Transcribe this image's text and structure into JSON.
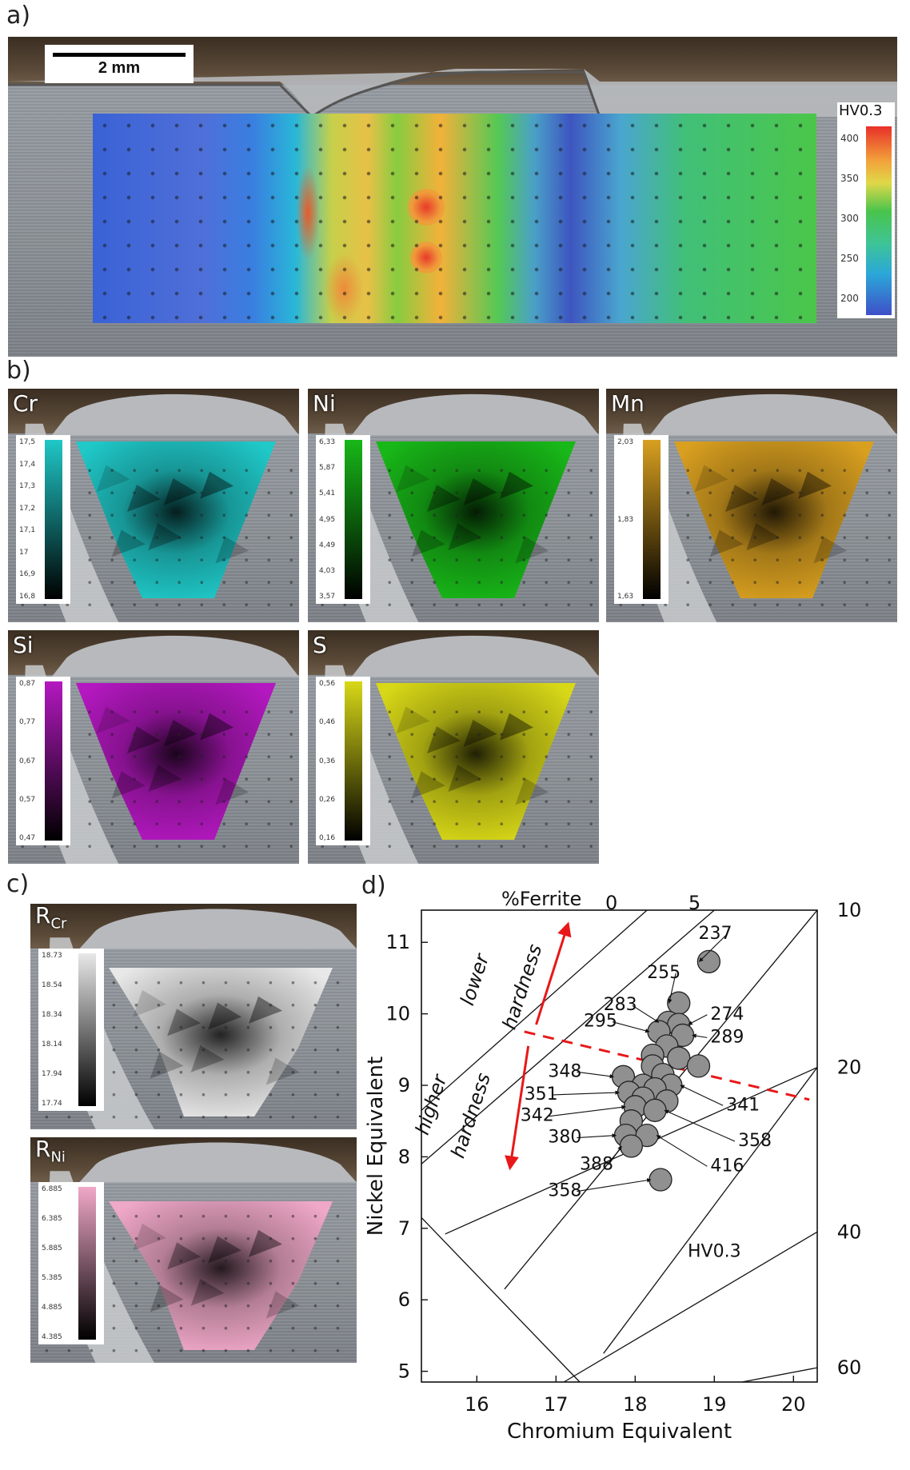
{
  "panel_labels": {
    "a": "a)",
    "b": "b)",
    "c": "c)",
    "d": "d)"
  },
  "panel_a": {
    "scale_label": "2 mm",
    "legend_title": "HV0.3",
    "legend_ticks": [
      "400",
      "350",
      "300",
      "250",
      "200"
    ]
  },
  "panel_b": {
    "maps": [
      {
        "element": "Cr",
        "color": "#20c8c8",
        "ticks": [
          "17,5",
          "17,4",
          "17,3",
          "17,2",
          "17,1",
          "17",
          "16,9",
          "16,8"
        ]
      },
      {
        "element": "Ni",
        "color": "#18b818",
        "ticks": [
          "6,33",
          "5,87",
          "5,41",
          "4,95",
          "4,49",
          "4,03",
          "3,57"
        ]
      },
      {
        "element": "Mn",
        "color": "#d9a020",
        "ticks": [
          "2,03",
          "1,83",
          "1,63"
        ]
      },
      {
        "element": "Si",
        "color": "#b418c0",
        "ticks": [
          "0,87",
          "0,77",
          "0,67",
          "0,57",
          "0,47"
        ]
      },
      {
        "element": "S",
        "color": "#d8d818",
        "ticks": [
          "0,56",
          "0,46",
          "0,36",
          "0,26",
          "0,16"
        ]
      }
    ]
  },
  "panel_c": {
    "maps": [
      {
        "label_main": "R",
        "label_sub": "Cr",
        "color": "#e8e8e8",
        "ticks": [
          "18.73",
          "18.54",
          "18.34",
          "18.14",
          "17.94",
          "17.74"
        ]
      },
      {
        "label_main": "R",
        "label_sub": "Ni",
        "color": "#f0a8c8",
        "ticks": [
          "6.885",
          "6.385",
          "5.885",
          "5.385",
          "4.885",
          "4.385"
        ]
      }
    ]
  },
  "chart_data": {
    "type": "scatter",
    "title": "",
    "xlabel": "Chromium Equivalent",
    "ylabel": "Nickel Equivalent",
    "xlim": [
      15.3,
      20.3
    ],
    "ylim": [
      4.85,
      11.45
    ],
    "x_ticks": [
      "16",
      "17",
      "18",
      "19",
      "20"
    ],
    "y_ticks": [
      "5",
      "6",
      "7",
      "8",
      "9",
      "10",
      "11"
    ],
    "top_axis_label": "%Ferrite",
    "ferrite_lines": [
      "0",
      "5",
      "10",
      "20",
      "40",
      "60"
    ],
    "annotation": "HV0.3",
    "region_labels": [
      "lower",
      "hardness",
      "higher",
      "hardness"
    ],
    "point_color": "#909090",
    "divider_color": "#e81818",
    "points": [
      {
        "x": 18.93,
        "y": 10.73,
        "label": "237"
      },
      {
        "x": 18.55,
        "y": 10.15,
        "label": "255"
      },
      {
        "x": 18.42,
        "y": 9.88,
        "label": "283"
      },
      {
        "x": 18.55,
        "y": 9.85,
        "label": "274"
      },
      {
        "x": 18.3,
        "y": 9.75,
        "label": "295"
      },
      {
        "x": 18.6,
        "y": 9.7,
        "label": "289"
      },
      {
        "x": 18.4,
        "y": 9.55,
        "label": ""
      },
      {
        "x": 18.22,
        "y": 9.42,
        "label": ""
      },
      {
        "x": 18.55,
        "y": 9.38,
        "label": ""
      },
      {
        "x": 18.8,
        "y": 9.27,
        "label": ""
      },
      {
        "x": 18.22,
        "y": 9.27,
        "label": ""
      },
      {
        "x": 18.35,
        "y": 9.15,
        "label": ""
      },
      {
        "x": 17.85,
        "y": 9.12,
        "label": "348"
      },
      {
        "x": 18.1,
        "y": 9.0,
        "label": ""
      },
      {
        "x": 18.45,
        "y": 9.0,
        "label": "341"
      },
      {
        "x": 18.25,
        "y": 8.95,
        "label": ""
      },
      {
        "x": 17.92,
        "y": 8.9,
        "label": "351"
      },
      {
        "x": 18.1,
        "y": 8.82,
        "label": ""
      },
      {
        "x": 18.4,
        "y": 8.78,
        "label": ""
      },
      {
        "x": 18.0,
        "y": 8.7,
        "label": "342"
      },
      {
        "x": 18.25,
        "y": 8.65,
        "label": "358"
      },
      {
        "x": 17.95,
        "y": 8.5,
        "label": ""
      },
      {
        "x": 17.88,
        "y": 8.3,
        "label": "380"
      },
      {
        "x": 18.15,
        "y": 8.3,
        "label": "416"
      },
      {
        "x": 17.95,
        "y": 8.15,
        "label": "388"
      },
      {
        "x": 18.32,
        "y": 7.68,
        "label": "358"
      }
    ],
    "point_labels": [
      {
        "text": "237",
        "tx": 18.8,
        "ty": 11.05,
        "px": 18.93,
        "py": 10.73
      },
      {
        "text": "255",
        "tx": 18.15,
        "ty": 10.5,
        "px": 18.55,
        "py": 10.15
      },
      {
        "text": "283",
        "tx": 17.6,
        "ty": 10.05,
        "px": 18.42,
        "py": 9.88
      },
      {
        "text": "295",
        "tx": 17.35,
        "ty": 9.82,
        "px": 18.3,
        "py": 9.75
      },
      {
        "text": "274",
        "tx": 18.95,
        "ty": 9.92,
        "px": 18.55,
        "py": 9.85
      },
      {
        "text": "289",
        "tx": 18.95,
        "ty": 9.6,
        "px": 18.6,
        "py": 9.7
      },
      {
        "text": "348",
        "tx": 16.9,
        "ty": 9.12,
        "px": 17.85,
        "py": 9.12
      },
      {
        "text": "351",
        "tx": 16.6,
        "ty": 8.8,
        "px": 17.92,
        "py": 8.9
      },
      {
        "text": "342",
        "tx": 16.55,
        "ty": 8.5,
        "px": 18.0,
        "py": 8.7
      },
      {
        "text": "341",
        "tx": 19.15,
        "ty": 8.65,
        "px": 18.45,
        "py": 9.0
      },
      {
        "text": "358",
        "tx": 19.3,
        "ty": 8.15,
        "px": 18.25,
        "py": 8.65
      },
      {
        "text": "380",
        "tx": 16.9,
        "ty": 8.2,
        "px": 17.88,
        "py": 8.3
      },
      {
        "text": "416",
        "tx": 18.95,
        "ty": 7.8,
        "px": 18.15,
        "py": 8.3
      },
      {
        "text": "388",
        "tx": 17.3,
        "ty": 7.82,
        "px": 17.95,
        "py": 8.15
      },
      {
        "text": "358",
        "tx": 16.9,
        "ty": 7.45,
        "px": 18.32,
        "py": 7.68
      }
    ]
  }
}
